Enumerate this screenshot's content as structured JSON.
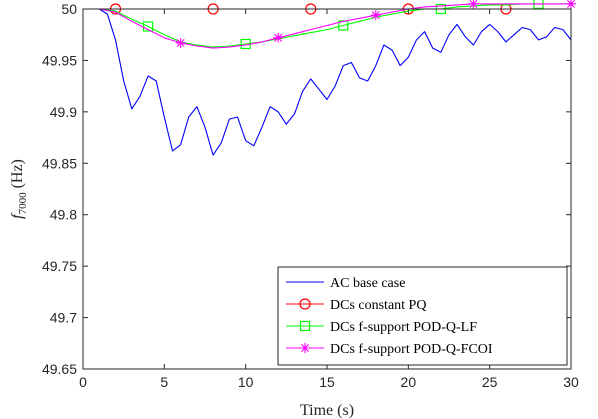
{
  "chart_data": {
    "type": "line",
    "xlabel": "Time (s)",
    "ylabel": {
      "base": "f",
      "subscript": "7000",
      "unit": " (Hz)"
    },
    "xlim": [
      0,
      30
    ],
    "ylim": [
      49.65,
      50.0
    ],
    "xticks": [
      0,
      5,
      10,
      15,
      20,
      25,
      30
    ],
    "yticks": [
      49.65,
      49.7,
      49.75,
      49.8,
      49.85,
      49.9,
      49.95,
      50
    ],
    "xtick_labels": [
      "0",
      "5",
      "10",
      "15",
      "20",
      "25",
      "30"
    ],
    "ytick_labels": [
      "49.65",
      "49.7",
      "49.75",
      "49.8",
      "49.85",
      "49.9",
      "49.95",
      "50"
    ],
    "grid": false,
    "legend_position": "bottom-right",
    "series": [
      {
        "name": "AC base case",
        "color": "#0000ff",
        "marker": "none",
        "x": [
          0,
          0.5,
          1,
          1.5,
          2,
          2.5,
          3,
          3.5,
          4,
          4.5,
          5,
          5.5,
          6,
          6.5,
          7,
          7.5,
          8,
          8.5,
          9,
          9.5,
          10,
          10.5,
          11,
          11.5,
          12,
          12.5,
          13,
          13.5,
          14,
          14.5,
          15,
          15.5,
          16,
          16.5,
          17,
          17.5,
          18,
          18.5,
          19,
          19.5,
          20,
          20.5,
          21,
          21.5,
          22,
          22.5,
          23,
          23.5,
          24,
          24.5,
          25,
          25.5,
          26,
          26.5,
          27,
          27.5,
          28,
          28.5,
          29,
          29.5,
          30
        ],
        "values": [
          50.0,
          50.0,
          50.0,
          49.995,
          49.97,
          49.93,
          49.903,
          49.915,
          49.935,
          49.93,
          49.895,
          49.862,
          49.868,
          49.895,
          49.905,
          49.885,
          49.858,
          49.87,
          49.893,
          49.895,
          49.872,
          49.867,
          49.885,
          49.905,
          49.9,
          49.888,
          49.898,
          49.92,
          49.932,
          49.922,
          49.912,
          49.925,
          49.945,
          49.948,
          49.933,
          49.93,
          49.945,
          49.965,
          49.96,
          49.945,
          49.953,
          49.97,
          49.978,
          49.962,
          49.958,
          49.975,
          49.985,
          49.973,
          49.965,
          49.978,
          49.985,
          49.978,
          49.968,
          49.975,
          49.982,
          49.98,
          49.97,
          49.973,
          49.982,
          49.98,
          49.97
        ]
      },
      {
        "name": "DCs constant PQ",
        "color": "#ff0000",
        "marker": "circle",
        "x": [
          0,
          30
        ],
        "values": [
          50.0,
          50.0
        ],
        "marker_x": [
          2,
          8,
          14,
          20,
          26
        ],
        "marker_values": [
          50.0,
          50.0,
          50.0,
          50.0,
          50.0
        ]
      },
      {
        "name": "DCs f-support POD-Q-LF",
        "color": "#00ff00",
        "marker": "square",
        "x": [
          0,
          1,
          2,
          3,
          4,
          5,
          6,
          7,
          8,
          9,
          10,
          11,
          12,
          13,
          14,
          15,
          16,
          17,
          18,
          19,
          20,
          21,
          22,
          23,
          24,
          25,
          26,
          27,
          28,
          29,
          30
        ],
        "values": [
          50.0,
          50.0,
          49.998,
          49.99,
          49.983,
          49.975,
          49.968,
          49.965,
          49.963,
          49.964,
          49.966,
          49.968,
          49.971,
          49.974,
          49.977,
          49.98,
          49.984,
          49.988,
          49.992,
          49.995,
          49.998,
          50.0,
          50.0,
          50.002,
          50.003,
          50.004,
          50.004,
          50.005,
          50.005,
          50.005,
          50.005
        ],
        "marker_x": [
          4,
          10,
          16,
          22,
          28
        ],
        "marker_values": [
          49.983,
          49.966,
          49.984,
          50.0,
          50.005
        ]
      },
      {
        "name": "DCs f-support POD-Q-FCOI",
        "color": "#ff00ff",
        "marker": "asterisk",
        "x": [
          0,
          1,
          2,
          3,
          4,
          5,
          6,
          7,
          8,
          9,
          10,
          11,
          12,
          13,
          14,
          15,
          16,
          17,
          18,
          19,
          20,
          21,
          22,
          23,
          24,
          25,
          26,
          27,
          28,
          29,
          30
        ],
        "values": [
          50.0,
          50.0,
          49.997,
          49.988,
          49.98,
          49.972,
          49.967,
          49.964,
          49.962,
          49.963,
          49.965,
          49.968,
          49.972,
          49.976,
          49.98,
          49.984,
          49.988,
          49.991,
          49.994,
          49.997,
          50.0,
          50.002,
          50.003,
          50.004,
          50.005,
          50.005,
          50.005,
          50.005,
          50.005,
          50.005,
          50.005
        ],
        "marker_x": [
          6,
          12,
          18,
          24,
          30
        ],
        "marker_values": [
          49.967,
          49.972,
          49.994,
          50.005,
          50.005
        ]
      }
    ]
  }
}
